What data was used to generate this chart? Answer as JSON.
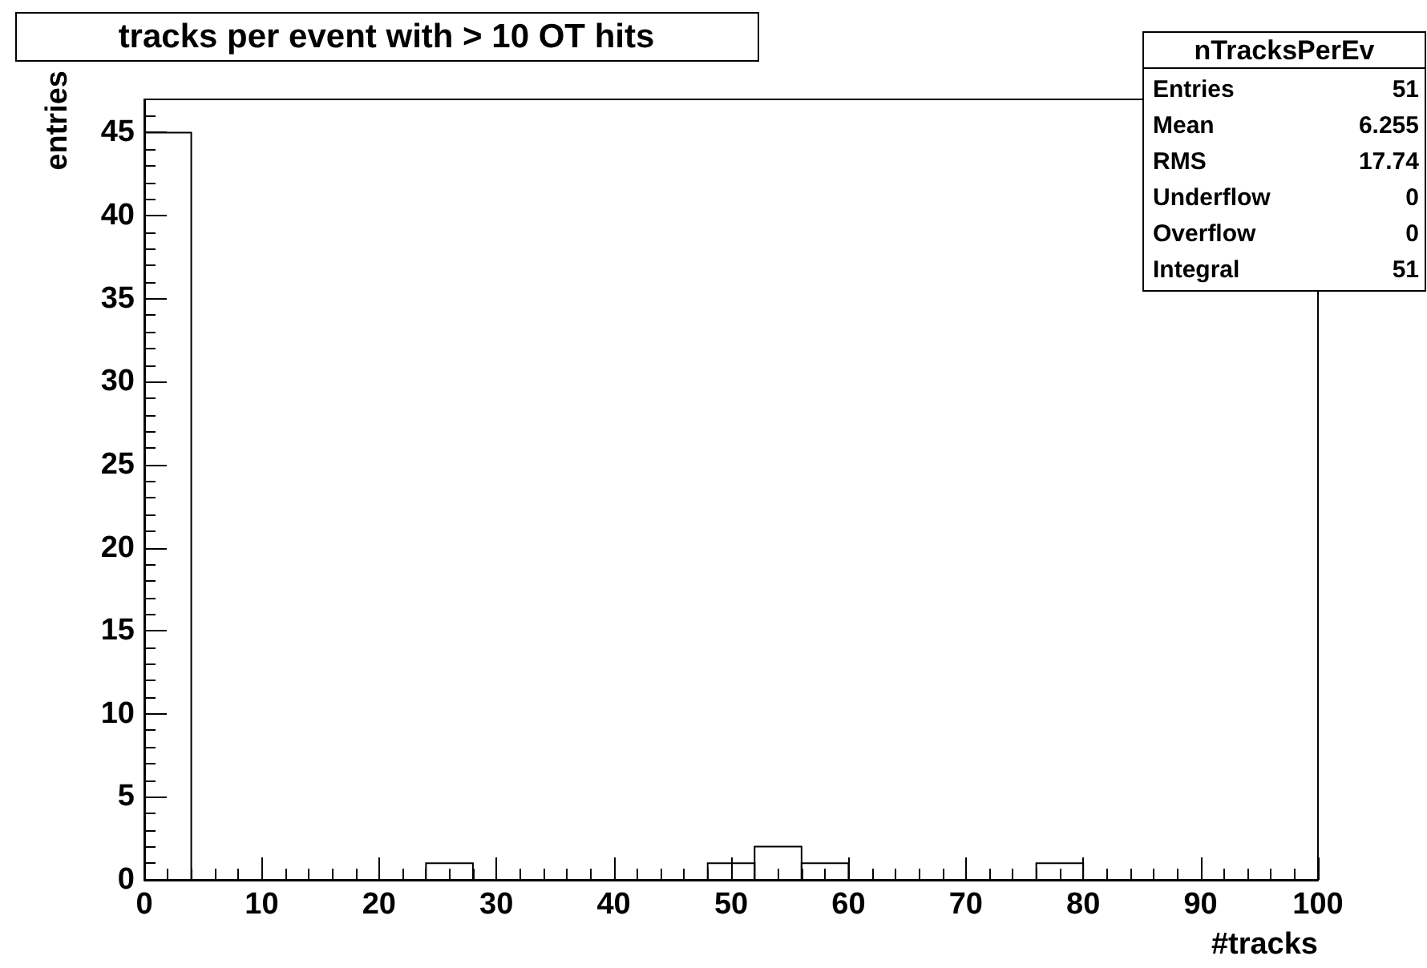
{
  "chart_data": {
    "type": "histogram",
    "title": "tracks per event with > 10 OT hits",
    "xlabel": "#tracks",
    "ylabel": "entries",
    "bins": [
      0,
      4,
      8,
      12,
      16,
      20,
      24,
      28,
      32,
      36,
      40,
      44,
      48,
      52,
      56,
      60,
      64,
      68,
      72,
      76,
      80,
      84,
      88,
      92,
      96,
      100
    ],
    "values": [
      45,
      0,
      0,
      0,
      0,
      0,
      1,
      0,
      0,
      0,
      0,
      0,
      1,
      2,
      1,
      0,
      0,
      0,
      0,
      1,
      0,
      0,
      0,
      0,
      0
    ],
    "color": "#000000",
    "xlim": [
      0,
      100
    ],
    "xticks": [
      0,
      10,
      20,
      30,
      40,
      50,
      60,
      70,
      80,
      90,
      100
    ],
    "ylim": [
      0,
      47
    ],
    "yticks": [
      0,
      5,
      10,
      15,
      20,
      25,
      30,
      35,
      40,
      45
    ],
    "annotations": [
      "nTracksPerEv",
      "Entries 51",
      "Mean 6.255",
      "RMS 17.74",
      "Underflow 0",
      "Overflow 0",
      "Integral 51"
    ]
  }
}
